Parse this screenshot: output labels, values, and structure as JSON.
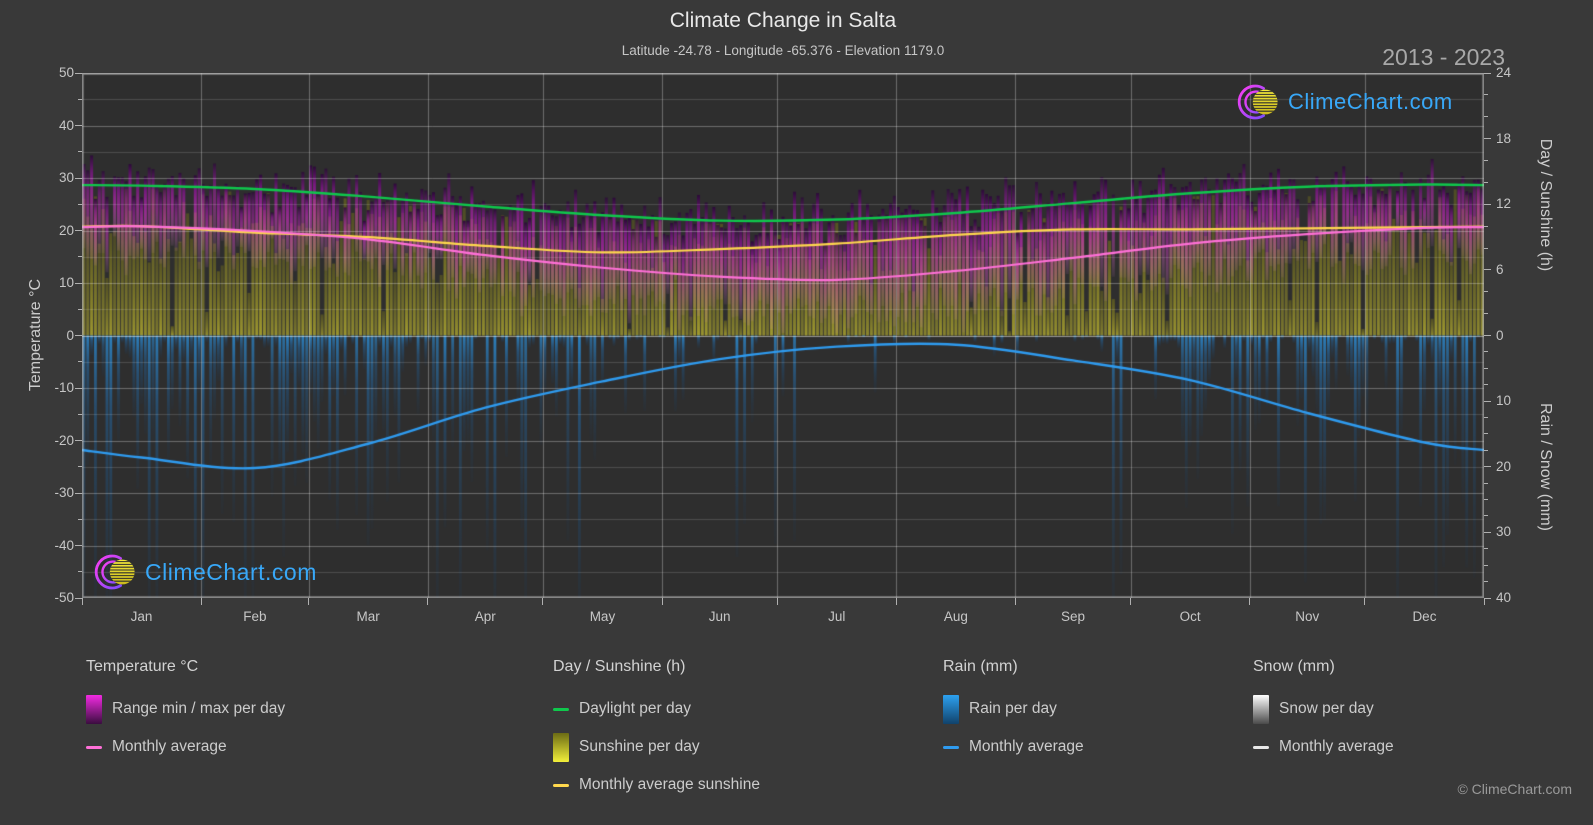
{
  "title": "Climate Change in Salta",
  "subtitle": "Latitude -24.78 - Longitude -65.376 - Elevation 1179.0",
  "year_range": "2013 - 2023",
  "watermark": "ClimeChart.com",
  "copyright": "© ClimeChart.com",
  "colors": {
    "page_bg": "#393939",
    "plot_bg": "#2e2e2e",
    "grid": "#ffffff",
    "daylight_line": "#0fc84c",
    "sunshine_line": "#ffd84d",
    "temp_avg_line": "#ff70d8",
    "rain_avg_line": "#2f9bef",
    "snow_avg_line": "#e8e8e8",
    "temp_bar_bright": "#e12dd7",
    "temp_bar_dark": "#2e0637",
    "sun_bar": "#a8a42c",
    "rain_bar": "#2d8cd2",
    "snow_bar": "#ffffff",
    "watermark_text": "#38a8f8",
    "logo_magenta": "#ff3df2",
    "logo_violet": "#7d4dff",
    "logo_yellow": "#f0e63a"
  },
  "axes": {
    "left_title": "Temperature °C",
    "right_top_title": "Day / Sunshine (h)",
    "right_bottom_title": "Rain / Snow (mm)",
    "temp_ticks": [
      50,
      40,
      30,
      20,
      10,
      0,
      -10,
      -20,
      -30,
      -40,
      -50
    ],
    "day_ticks": [
      24,
      18,
      12,
      6,
      0
    ],
    "rain_ticks": [
      10,
      20,
      30,
      40
    ],
    "temp_range": [
      -50,
      50
    ],
    "day_range": [
      0,
      24
    ],
    "rain_range": [
      0,
      40
    ]
  },
  "chart_data": {
    "type": "climate-composite",
    "title": "Climate Change in Salta",
    "categories": [
      "Jan",
      "Feb",
      "Mar",
      "Apr",
      "May",
      "Jun",
      "Jul",
      "Aug",
      "Sep",
      "Oct",
      "Nov",
      "Dec"
    ],
    "month_days": [
      31,
      28,
      31,
      30,
      31,
      30,
      31,
      31,
      30,
      31,
      30,
      31
    ],
    "series": [
      {
        "name": "Daylight per day (h)",
        "values": [
          13.7,
          13.4,
          12.7,
          11.8,
          11.0,
          10.5,
          10.6,
          11.2,
          12.1,
          13.0,
          13.6,
          13.8
        ]
      },
      {
        "name": "Monthly average sunshine (h)",
        "values": [
          10.0,
          9.4,
          9.0,
          8.2,
          7.6,
          7.9,
          8.4,
          9.2,
          9.7,
          9.7,
          9.8,
          9.9
        ]
      },
      {
        "name": "Monthly average temperature (°C)",
        "values": [
          20.8,
          19.9,
          18.3,
          15.3,
          12.9,
          11.2,
          10.6,
          12.3,
          14.8,
          17.5,
          19.3,
          20.5
        ]
      },
      {
        "name": "Typical daily max temperature (°C)",
        "values": [
          29.5,
          28.8,
          27.5,
          25.0,
          23.0,
          22.0,
          22.5,
          24.5,
          26.5,
          28.0,
          29.0,
          29.8
        ]
      },
      {
        "name": "Typical daily min temperature (°C)",
        "values": [
          15.5,
          15.0,
          13.5,
          10.0,
          6.5,
          4.5,
          4.0,
          5.5,
          8.0,
          11.5,
          13.5,
          15.0
        ]
      },
      {
        "name": "Monthly average rain (mm)",
        "values": [
          18.6,
          20.2,
          16.5,
          11.0,
          7.0,
          3.6,
          1.7,
          1.4,
          3.8,
          6.8,
          11.8,
          16.3
        ]
      },
      {
        "name": "Wet day fraction",
        "values": [
          0.8,
          0.8,
          0.75,
          0.55,
          0.4,
          0.25,
          0.15,
          0.12,
          0.3,
          0.45,
          0.65,
          0.75
        ]
      },
      {
        "name": "Monthly average snow (mm)",
        "values": [
          0,
          0,
          0,
          0,
          0,
          0,
          0,
          0,
          0,
          0,
          0,
          0
        ]
      }
    ],
    "axis_ranges": {
      "temperature_c": [
        -50,
        50
      ],
      "day_sunshine_h": [
        0,
        24
      ],
      "rain_snow_mm": [
        0,
        40
      ]
    },
    "grid": "on",
    "legend_position": "bottom"
  },
  "legend": {
    "groups": [
      {
        "header": "Temperature °C",
        "items": [
          {
            "label": "Range min / max per day",
            "swatch": "bar",
            "gradient": [
              "#f22be2",
              "#3a0d3f"
            ]
          },
          {
            "label": "Monthly average",
            "swatch": "line",
            "color": "#ff70d8"
          }
        ]
      },
      {
        "header": "Day / Sunshine (h)",
        "items": [
          {
            "label": "Daylight per day",
            "swatch": "line",
            "color": "#0fc84c"
          },
          {
            "label": "Sunshine per day",
            "swatch": "bar",
            "gradient": [
              "#6b6b14",
              "#f2ef3a"
            ]
          },
          {
            "label": "Monthly average sunshine",
            "swatch": "line",
            "color": "#ffd84d"
          }
        ]
      },
      {
        "header": "Rain (mm)",
        "items": [
          {
            "label": "Rain per day",
            "swatch": "bar",
            "gradient": [
              "#2da1f0",
              "#11426b"
            ]
          },
          {
            "label": "Monthly average",
            "swatch": "line",
            "color": "#2f9bef"
          }
        ]
      },
      {
        "header": "Snow (mm)",
        "items": [
          {
            "label": "Snow per day",
            "swatch": "bar",
            "gradient": [
              "#ffffff",
              "#4a4a4a"
            ]
          },
          {
            "label": "Monthly average",
            "swatch": "line",
            "color": "#e8e8e8"
          }
        ]
      }
    ]
  }
}
